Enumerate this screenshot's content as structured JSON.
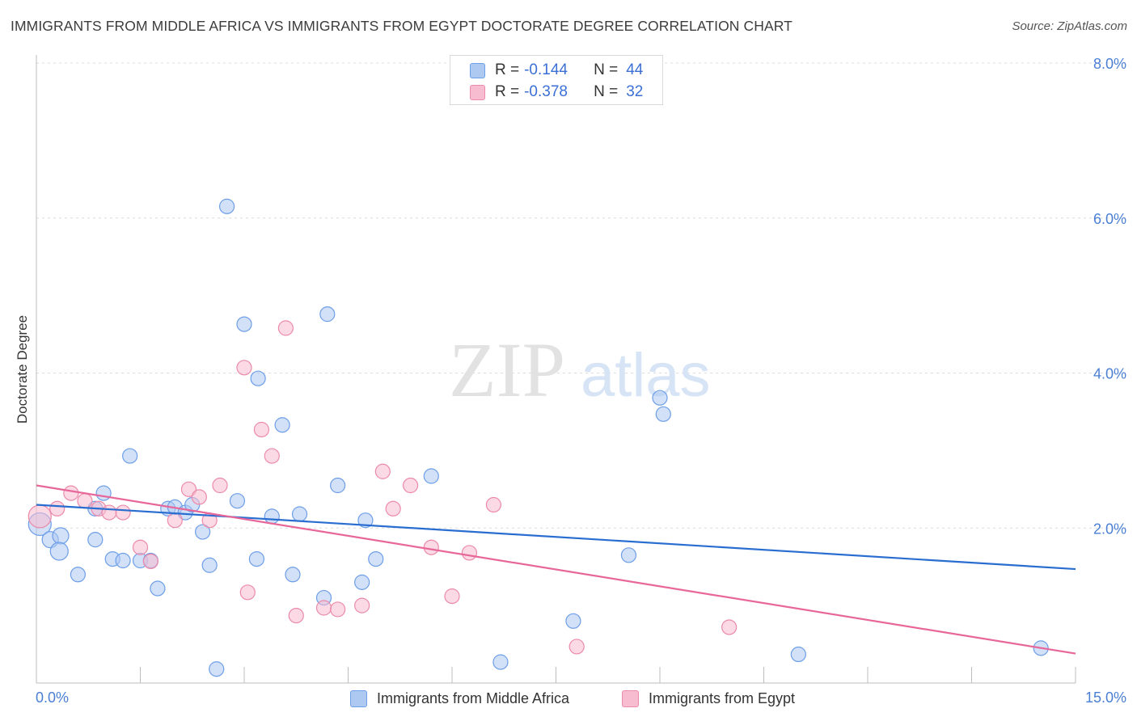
{
  "title": "IMMIGRANTS FROM MIDDLE AFRICA VS IMMIGRANTS FROM EGYPT DOCTORATE DEGREE CORRELATION CHART",
  "source": "Source: ZipAtlas.com",
  "watermark": {
    "zip": "ZIP",
    "atlas": "atlas"
  },
  "legend_top": [
    {
      "r_label": "R =",
      "r_value": "-0.144",
      "n_label": "N =",
      "n_value": "44",
      "color": "#adc9f2"
    },
    {
      "r_label": "R =",
      "r_value": "-0.378",
      "n_label": "N =",
      "n_value": "32",
      "color": "#f7bcd0"
    }
  ],
  "chart_data": {
    "type": "scatter",
    "title": "IMMIGRANTS FROM MIDDLE AFRICA VS IMMIGRANTS FROM EGYPT DOCTORATE DEGREE CORRELATION CHART",
    "xlabel": "",
    "ylabel": "Doctorate Degree",
    "xlim": [
      0,
      15
    ],
    "ylim": [
      0,
      8
    ],
    "x_tick_labels": [
      "0.0%",
      "15.0%"
    ],
    "y_tick_labels": [
      "2.0%",
      "4.0%",
      "6.0%",
      "8.0%"
    ],
    "y_tick_values": [
      2,
      4,
      6,
      8
    ],
    "grid": true,
    "series": [
      {
        "name": "Immigrants from Middle Africa",
        "color": "#adc9f2",
        "stroke": "#6d9ee8",
        "trend_color": "#2a6dd0",
        "trend": {
          "x": [
            0,
            15
          ],
          "y": [
            2.3,
            1.47
          ]
        },
        "points": [
          [
            0.05,
            2.05
          ],
          [
            0.2,
            1.85
          ],
          [
            0.35,
            1.9
          ],
          [
            0.33,
            1.7
          ],
          [
            0.6,
            1.4
          ],
          [
            0.85,
            2.25
          ],
          [
            0.85,
            1.85
          ],
          [
            0.97,
            2.45
          ],
          [
            1.1,
            1.6
          ],
          [
            1.25,
            1.58
          ],
          [
            1.35,
            2.93
          ],
          [
            1.5,
            1.58
          ],
          [
            1.65,
            1.58
          ],
          [
            1.75,
            1.22
          ],
          [
            1.9,
            2.25
          ],
          [
            2.0,
            2.27
          ],
          [
            2.15,
            2.2
          ],
          [
            2.25,
            2.3
          ],
          [
            2.4,
            1.95
          ],
          [
            2.5,
            1.52
          ],
          [
            2.6,
            0.18
          ],
          [
            2.75,
            6.15
          ],
          [
            2.9,
            2.35
          ],
          [
            3.0,
            4.63
          ],
          [
            3.18,
            1.6
          ],
          [
            3.2,
            3.93
          ],
          [
            3.4,
            2.15
          ],
          [
            3.55,
            3.33
          ],
          [
            3.7,
            1.4
          ],
          [
            3.8,
            2.18
          ],
          [
            4.15,
            1.1
          ],
          [
            4.2,
            4.76
          ],
          [
            4.35,
            2.55
          ],
          [
            4.7,
            1.3
          ],
          [
            4.75,
            2.1
          ],
          [
            4.9,
            1.6
          ],
          [
            5.7,
            2.67
          ],
          [
            6.7,
            0.27
          ],
          [
            7.75,
            0.8
          ],
          [
            8.55,
            1.65
          ],
          [
            9.0,
            3.68
          ],
          [
            9.05,
            3.47
          ],
          [
            11.0,
            0.37
          ],
          [
            14.5,
            0.45
          ]
        ],
        "sizes": [
          14,
          10,
          10,
          11,
          9,
          9,
          9,
          9,
          9,
          9,
          9,
          9,
          9,
          9,
          9,
          9,
          9,
          9,
          9,
          9,
          9,
          9,
          9,
          9,
          9,
          9,
          9,
          9,
          9,
          9,
          9,
          9,
          9,
          9,
          9,
          9,
          9,
          9,
          9,
          9,
          9,
          9,
          9,
          9
        ]
      },
      {
        "name": "Immigrants from Egypt",
        "color": "#f7bcd0",
        "stroke": "#ec8aa9",
        "trend_color": "#e8679a",
        "trend": {
          "x": [
            0,
            15
          ],
          "y": [
            2.55,
            0.38
          ]
        },
        "points": [
          [
            0.05,
            2.15
          ],
          [
            0.3,
            2.25
          ],
          [
            0.5,
            2.45
          ],
          [
            0.7,
            2.35
          ],
          [
            0.9,
            2.25
          ],
          [
            1.05,
            2.2
          ],
          [
            1.25,
            2.2
          ],
          [
            1.5,
            1.75
          ],
          [
            1.65,
            1.57
          ],
          [
            2.0,
            2.1
          ],
          [
            2.2,
            2.5
          ],
          [
            2.35,
            2.4
          ],
          [
            2.5,
            2.1
          ],
          [
            2.65,
            2.55
          ],
          [
            3.05,
            1.17
          ],
          [
            3.0,
            4.07
          ],
          [
            3.25,
            3.27
          ],
          [
            3.4,
            2.93
          ],
          [
            3.6,
            4.58
          ],
          [
            3.75,
            0.87
          ],
          [
            4.15,
            0.97
          ],
          [
            4.35,
            0.95
          ],
          [
            4.7,
            1.0
          ],
          [
            5.0,
            2.73
          ],
          [
            5.15,
            2.25
          ],
          [
            5.4,
            2.55
          ],
          [
            5.7,
            1.75
          ],
          [
            6.0,
            1.12
          ],
          [
            6.25,
            1.68
          ],
          [
            6.6,
            2.3
          ],
          [
            7.8,
            0.47
          ],
          [
            10.0,
            0.72
          ]
        ],
        "sizes": [
          14,
          9,
          9,
          9,
          9,
          9,
          9,
          9,
          9,
          9,
          9,
          9,
          9,
          9,
          9,
          9,
          9,
          9,
          9,
          9,
          9,
          9,
          9,
          9,
          9,
          9,
          9,
          9,
          9,
          9,
          9,
          9
        ]
      }
    ],
    "legend": "bottom"
  }
}
